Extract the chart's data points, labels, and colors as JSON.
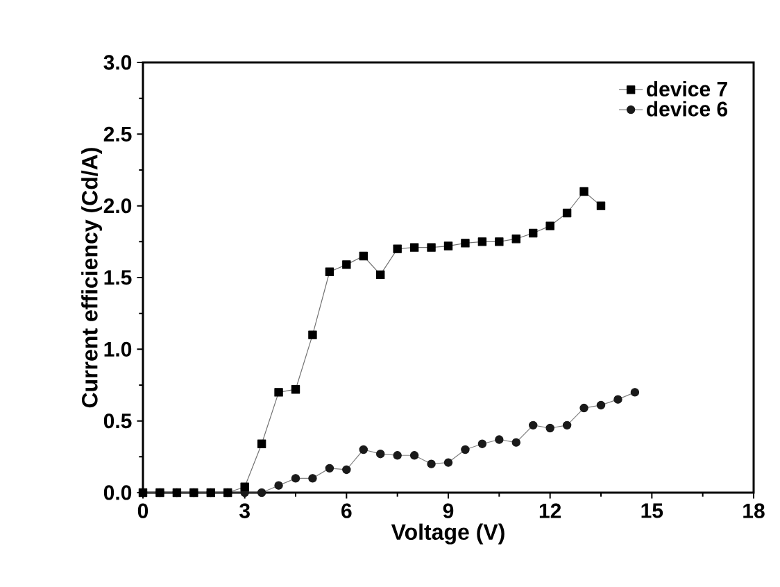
{
  "chart_data": {
    "type": "line",
    "xlabel": "Voltage (V)",
    "ylabel": "Current efficiency (Cd/A)",
    "x": [
      0,
      0.5,
      1,
      1.5,
      2,
      2.5,
      3,
      3.5,
      4,
      4.5,
      5,
      5.5,
      6,
      6.5,
      7,
      7.5,
      8,
      8.5,
      9,
      9.5,
      10,
      10.5,
      11,
      11.5,
      12,
      12.5,
      13,
      13.5,
      14,
      14.5
    ],
    "series": [
      {
        "name": "device 7",
        "color": "#000000",
        "marker": "square",
        "values": [
          0,
          0,
          0,
          0,
          0,
          0,
          0.04,
          0.34,
          0.7,
          0.72,
          1.1,
          1.54,
          1.59,
          1.65,
          1.52,
          1.7,
          1.71,
          1.71,
          1.72,
          1.74,
          1.75,
          1.75,
          1.77,
          1.81,
          1.86,
          1.95,
          2.1,
          2.0,
          null,
          null
        ]
      },
      {
        "name": "device 6",
        "color": "#1a1a1a",
        "marker": "circle",
        "values": [
          0,
          0,
          0,
          0,
          0,
          0,
          0,
          0,
          0.05,
          0.1,
          0.1,
          0.17,
          0.16,
          0.3,
          0.27,
          0.26,
          0.26,
          0.2,
          0.21,
          0.3,
          0.34,
          0.37,
          0.35,
          0.47,
          0.45,
          0.47,
          0.59,
          0.61,
          0.65,
          0.7
        ]
      }
    ],
    "xlim": [
      0,
      18
    ],
    "xticks": [
      0,
      3,
      6,
      9,
      12,
      15,
      18
    ],
    "ylim": [
      0,
      3
    ],
    "yticks": [
      {
        "value": 0,
        "label": "0.0"
      },
      {
        "value": 0.5,
        "label": "0.5"
      },
      {
        "value": 1,
        "label": "1.0"
      },
      {
        "value": 1.5,
        "label": "1.5"
      },
      {
        "value": 2,
        "label": "2.0"
      },
      {
        "value": 2.5,
        "label": "2.5"
      },
      {
        "value": 3,
        "label": "3.0"
      }
    ],
    "legend": "top right",
    "grid": false,
    "line_style": "solid"
  }
}
